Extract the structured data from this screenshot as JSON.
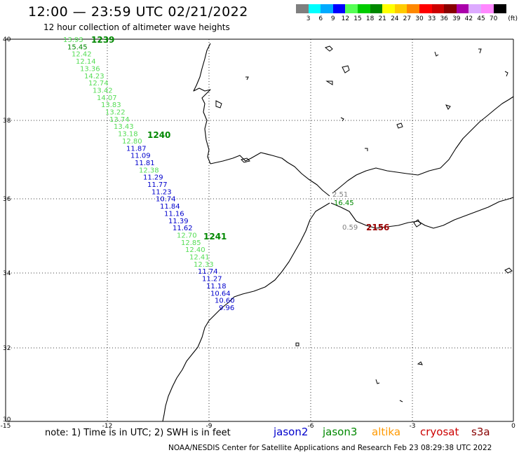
{
  "header": {
    "title": "12:00 — 23:59 UTC 02/21/2022",
    "subtitle": "12 hour collection of altimeter wave heights"
  },
  "colorbar": {
    "colors": [
      "#7f7f7f",
      "#00ffff",
      "#00aaff",
      "#0000ff",
      "#55ff55",
      "#00cc00",
      "#008800",
      "#ffff00",
      "#ffcc00",
      "#ff8800",
      "#ff0000",
      "#cc0000",
      "#880000",
      "#aa00aa",
      "#ddaaff",
      "#ff88ff",
      "#000000"
    ],
    "labels": [
      "3",
      "6",
      "9",
      "12",
      "15",
      "18",
      "21",
      "24",
      "27",
      "30",
      "33",
      "36",
      "39",
      "42",
      "45",
      "70"
    ],
    "unit": "(ft)"
  },
  "axes": {
    "lat_ticks": [
      "40",
      "38",
      "36",
      "34",
      "32",
      "30"
    ],
    "lon_ticks": [
      "-15",
      "-12",
      "-9",
      "-6",
      "-3",
      "0"
    ]
  },
  "passes": [
    {
      "label": "1239",
      "color": "#008800"
    },
    {
      "label": "1240",
      "color": "#008800"
    },
    {
      "label": "1241",
      "color": "#008800"
    },
    {
      "label": "2156",
      "color": "#990000"
    }
  ],
  "observations": [
    {
      "text": "13.93",
      "color": "#55dd55"
    },
    {
      "text": "15.45",
      "color": "#008800"
    },
    {
      "text": "12.42",
      "color": "#55dd55"
    },
    {
      "text": "12.14",
      "color": "#55dd55"
    },
    {
      "text": "13.36",
      "color": "#55dd55"
    },
    {
      "text": "14.23",
      "color": "#55dd55"
    },
    {
      "text": "12.74",
      "color": "#55dd55"
    },
    {
      "text": "13.42",
      "color": "#55dd55"
    },
    {
      "text": "14.07",
      "color": "#55dd55"
    },
    {
      "text": "13.83",
      "color": "#55dd55"
    },
    {
      "text": "13.22",
      "color": "#55dd55"
    },
    {
      "text": "13.74",
      "color": "#55dd55"
    },
    {
      "text": "13.43",
      "color": "#55dd55"
    },
    {
      "text": "13.18",
      "color": "#55dd55"
    },
    {
      "text": "12.80",
      "color": "#55dd55"
    },
    {
      "text": "11.87",
      "color": "#0000cc"
    },
    {
      "text": "11.09",
      "color": "#0000cc"
    },
    {
      "text": "11.81",
      "color": "#0000cc"
    },
    {
      "text": "12.38",
      "color": "#55dd55"
    },
    {
      "text": "11.29",
      "color": "#0000cc"
    },
    {
      "text": "11.77",
      "color": "#0000cc"
    },
    {
      "text": "11.23",
      "color": "#0000cc"
    },
    {
      "text": "10.74",
      "color": "#0000cc"
    },
    {
      "text": "11.84",
      "color": "#0000cc"
    },
    {
      "text": "11.16",
      "color": "#0000cc"
    },
    {
      "text": "11.39",
      "color": "#0000cc"
    },
    {
      "text": "11.62",
      "color": "#0000cc"
    },
    {
      "text": "12.70",
      "color": "#55dd55"
    },
    {
      "text": "12.85",
      "color": "#55dd55"
    },
    {
      "text": "12.40",
      "color": "#55dd55"
    },
    {
      "text": "12.41",
      "color": "#55dd55"
    },
    {
      "text": "12.33",
      "color": "#55dd55"
    },
    {
      "text": "11.74",
      "color": "#0000cc"
    },
    {
      "text": "11.27",
      "color": "#0000cc"
    },
    {
      "text": "11.18",
      "color": "#0000cc"
    },
    {
      "text": "10.64",
      "color": "#0000cc"
    },
    {
      "text": "10.60",
      "color": "#0000cc"
    },
    {
      "text": "9.96",
      "color": "#0000cc"
    },
    {
      "text": "2.51",
      "color": "#7f7f7f"
    },
    {
      "text": "16.45",
      "color": "#008800"
    },
    {
      "text": "0.59",
      "color": "#7f7f7f"
    }
  ],
  "footer": {
    "note": "note: 1) Time is in UTC; 2) SWH is in feet",
    "satellites": [
      {
        "name": "jason2",
        "color": "#0000cc"
      },
      {
        "name": "jason3",
        "color": "#008800"
      },
      {
        "name": "altika",
        "color": "#ff9900"
      },
      {
        "name": "cryosat",
        "color": "#cc0000"
      },
      {
        "name": "s3a",
        "color": "#880000"
      }
    ],
    "credit": "NOAA/NESDIS Center for Satellite Applications and Research    Feb 23 08:29:38 UTC 2022"
  }
}
